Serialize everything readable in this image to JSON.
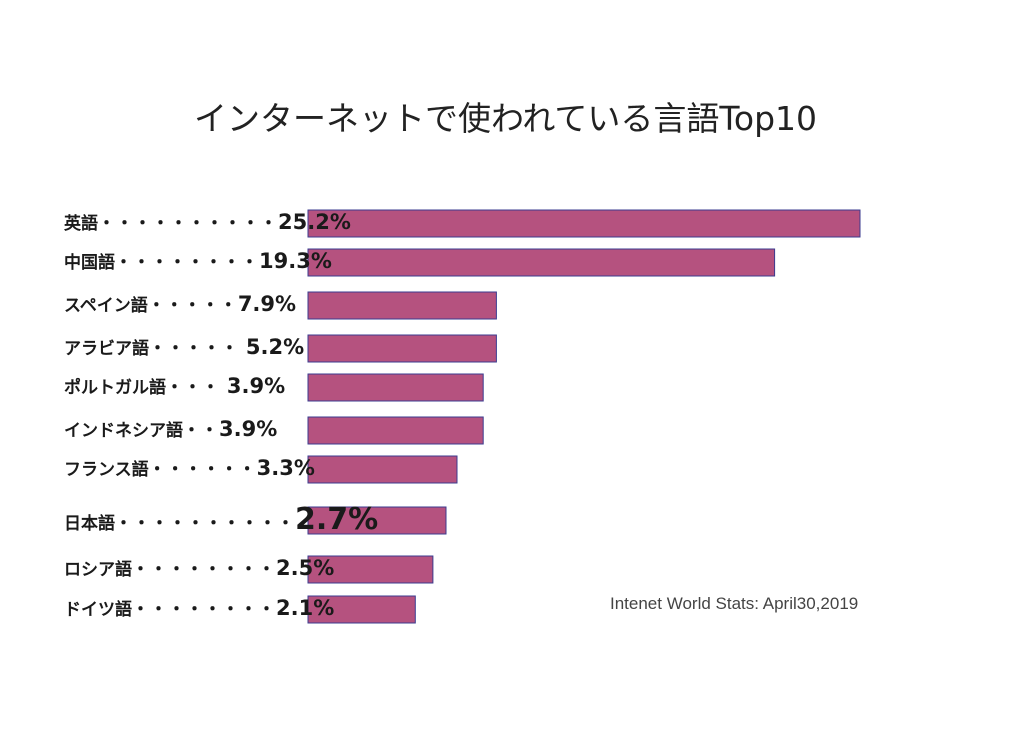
{
  "chart_data": {
    "type": "bar",
    "orientation": "horizontal",
    "title": "インターネットで使われている言語Top10",
    "categories": [
      "英語",
      "中国語",
      "スペイン語",
      "アラビア語",
      "ポルトガル語",
      "インドネシア語",
      "フランス語",
      "日本語",
      "ロシア語",
      "ドイツ語"
    ],
    "values": [
      25.2,
      19.3,
      7.9,
      5.2,
      3.9,
      3.9,
      3.3,
      2.7,
      2.5,
      2.1
    ],
    "leaders": [
      "・・・・・・・・・・",
      "・・・・・・・・",
      "・・・・・",
      "・・・・・ ",
      "・・・ ",
      "・・",
      "・・・・・・",
      "・・・・・・・・・・",
      "・・・・・・・・",
      "・・・・・・・・"
    ],
    "value_labels": [
      "25.2%",
      "19.3%",
      "7.9%",
      "5.2%",
      "3.9%",
      "3.9%",
      "3.3%",
      "2.7%",
      "2.5%",
      "2.1%"
    ],
    "bar_display_values": [
      25.2,
      21.3,
      8.6,
      8.6,
      8.0,
      8.0,
      6.8,
      6.3,
      5.7,
      4.9
    ],
    "annotation": "Intenet World Stats: April30,2019",
    "bar_color": "#b5527f",
    "bar_border": "#3b3b8f",
    "grid": false,
    "legend": "none"
  }
}
